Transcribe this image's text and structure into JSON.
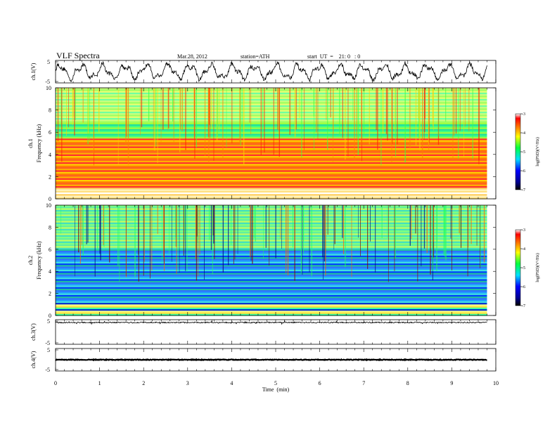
{
  "header": {
    "title": "VLF  Spectra",
    "date": "Mar.28, 2012",
    "station": "station=ATH",
    "start": "start  UT  =    21: 0   : 0"
  },
  "colors": {
    "low": "#000080",
    "high": "#ff0000"
  },
  "chart_data": {
    "type": "heatmap",
    "xlabel": "Time  (min)",
    "x_ticks": [
      "0",
      "1",
      "2",
      "3",
      "4",
      "5",
      "6",
      "7",
      "8",
      "9",
      "10"
    ],
    "xlim": [
      0,
      10
    ],
    "data_extent_min": 9.8,
    "panels": [
      {
        "name": "ch.1(V)",
        "kind": "waveform",
        "ylim": [
          -5,
          5
        ],
        "y_ticks": [
          "5",
          "-5"
        ]
      },
      {
        "name": "ch.1",
        "kind": "spectrogram",
        "ylabel": "Frequency  (kHz)",
        "ylim": [
          0,
          10
        ],
        "y_ticks": [
          "10",
          "8",
          "6",
          "4",
          "2",
          "0"
        ],
        "colorbar": {
          "label": "log(PSD)(V²/Hz)",
          "range": [
            -7,
            -3
          ],
          "ticks": [
            "-3",
            "-4",
            "-5",
            "-6",
            "-7"
          ]
        }
      },
      {
        "name": "ch.2",
        "kind": "spectrogram",
        "ylabel": "Frequency  (kHz)",
        "ylim": [
          0,
          10
        ],
        "y_ticks": [
          "10",
          "8",
          "6",
          "4",
          "2",
          "0"
        ],
        "colorbar": {
          "label": "log(PSD)(V²/Hz)",
          "range": [
            -7,
            -3
          ],
          "ticks": [
            "-3",
            "-4",
            "-5",
            "-6",
            "-7"
          ]
        }
      },
      {
        "name": "ch.3(V)",
        "kind": "waveform",
        "ylim": [
          -5,
          5
        ],
        "y_ticks": [
          "5",
          "-5"
        ]
      },
      {
        "name": "ch.4(V)",
        "kind": "waveform",
        "ylim": [
          -5,
          5
        ],
        "y_ticks": [
          "5",
          "-5"
        ]
      }
    ]
  }
}
